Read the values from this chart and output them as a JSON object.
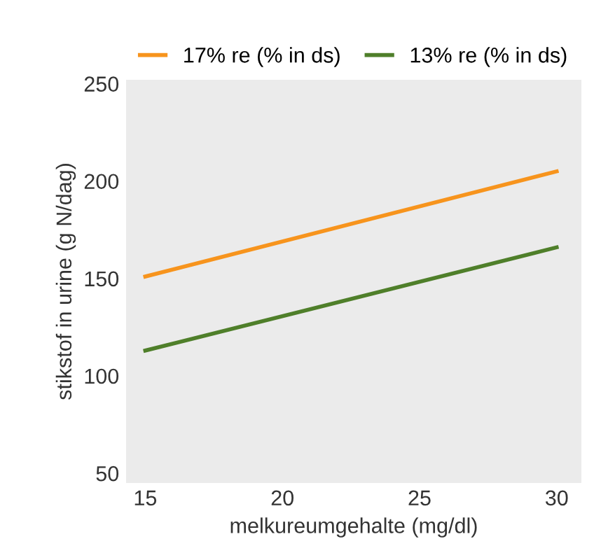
{
  "chart_data": {
    "type": "line",
    "xlabel": "melkureumgehalte (mg/dl)",
    "ylabel": "stikstof in urine (g N/dag)",
    "x": [
      15,
      30
    ],
    "series": [
      {
        "name": "17% re (% in ds)",
        "color": "#f7941d",
        "values": [
          151,
          205
        ]
      },
      {
        "name": "13% re (% in ds)",
        "color": "#4f7f2a",
        "values": [
          113,
          166
        ]
      }
    ],
    "xlim": [
      14.3,
      30.9
    ],
    "ylim": [
      45,
      252
    ],
    "xticks": [
      15,
      20,
      25,
      30
    ],
    "yticks": [
      50,
      100,
      150,
      200,
      250
    ],
    "grid": false,
    "legend": "top",
    "marker": "none",
    "line_style": "solid"
  }
}
